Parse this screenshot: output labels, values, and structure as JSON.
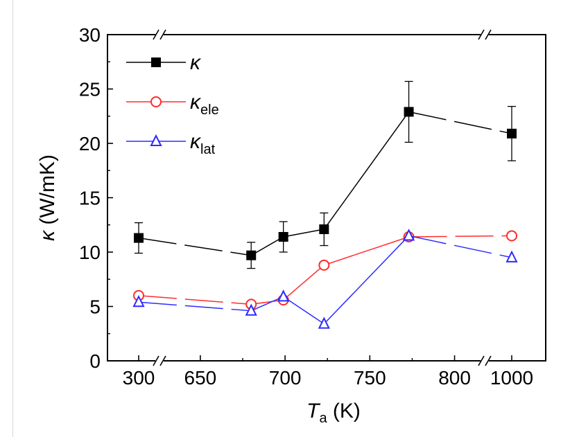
{
  "chart_data": {
    "type": "line",
    "xlabel": {
      "main": "T",
      "sub": "a",
      "unit": " (K)"
    },
    "ylabel": {
      "symbol": "κ",
      "unit": " (W/mK)"
    },
    "x_tick_labels": [
      "300",
      "650",
      "700",
      "750",
      "800",
      "1000"
    ],
    "y_tick_labels": [
      "0",
      "5",
      "10",
      "15",
      "20",
      "25",
      "30"
    ],
    "ylim": [
      0,
      30
    ],
    "x_axis_note": "broken axis: segments 300 | 630–810 | 1000 (K)",
    "x_segments": [
      {
        "range": [
          290,
          310
        ]
      },
      {
        "range": [
          630,
          810
        ]
      },
      {
        "range": [
          990,
          1010
        ]
      }
    ],
    "x_break_marks": [
      {
        "between": [
          310,
          630
        ]
      },
      {
        "between": [
          810,
          990
        ]
      }
    ],
    "legend": {
      "placement": "top-left"
    },
    "series": [
      {
        "name": "κ",
        "name_sub": "",
        "color": "#000000",
        "marker": "square-filled",
        "x": [
          300,
          680,
          699,
          723,
          773,
          1000
        ],
        "y": [
          11.3,
          9.7,
          11.4,
          12.1,
          22.9,
          20.9
        ],
        "err": [
          1.4,
          1.2,
          1.4,
          1.5,
          2.8,
          2.5
        ],
        "dashed_segments": [
          0,
          4
        ]
      },
      {
        "name": "κ",
        "name_sub": "ele",
        "color": "#ff2b2b",
        "marker": "circle-open",
        "x": [
          300,
          680,
          699,
          723,
          773,
          1000
        ],
        "y": [
          6.0,
          5.2,
          5.6,
          8.8,
          11.4,
          11.5
        ],
        "dashed_segments": [
          0,
          4
        ]
      },
      {
        "name": "κ",
        "name_sub": "lat",
        "color": "#2b2bff",
        "marker": "triangle-open",
        "x": [
          300,
          680,
          699,
          723,
          773,
          1000
        ],
        "y": [
          5.4,
          4.6,
          5.9,
          3.4,
          11.5,
          9.5
        ],
        "dashed_segments": [
          0,
          4
        ]
      }
    ]
  }
}
